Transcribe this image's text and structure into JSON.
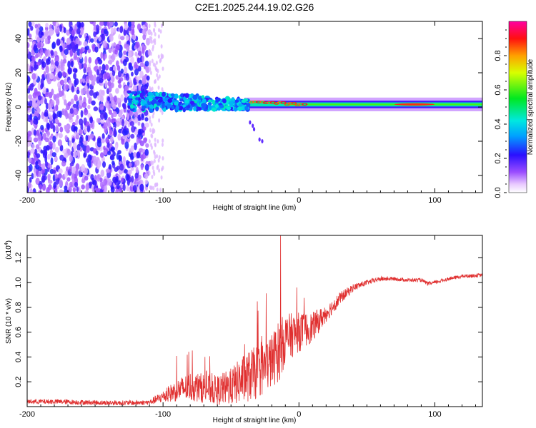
{
  "title": "C2E1.2025.244.19.02.G26",
  "chart_data": [
    {
      "type": "heatmap",
      "name": "spectrogram",
      "xlabel": "Height of straight line (km)",
      "ylabel": "Frequency (Hz)",
      "xlim": [
        -200,
        135
      ],
      "ylim": [
        -50,
        50
      ],
      "xticks": [
        -200,
        -100,
        0,
        100
      ],
      "yticks": [
        -40,
        -20,
        0,
        20,
        40
      ],
      "colorbar": {
        "label": "Normalized spectral amplitude",
        "range": [
          0,
          1
        ],
        "ticks": [
          0.0,
          0.2,
          0.4,
          0.6,
          0.8
        ],
        "tick_labels": [
          "0.0",
          "0.2",
          "0.4",
          "0.6",
          "0.8"
        ]
      },
      "regions": [
        {
          "name": "broadband-noise",
          "x": [
            -200,
            -110
          ],
          "freq": [
            -50,
            50
          ],
          "amplitude": 0.15
        },
        {
          "name": "noisy-carrier",
          "x": [
            -125,
            -40
          ],
          "freq": [
            -5,
            7
          ],
          "amplitude": 0.35
        },
        {
          "name": "carrier-tail",
          "x": [
            -40,
            135
          ],
          "freq_center": 1.5,
          "amplitude": 0.85
        }
      ]
    },
    {
      "type": "line",
      "name": "snr",
      "xlabel": "Height of straight line (km)",
      "ylabel": "SNR (10 * v/v)",
      "scale_label": "(x10",
      "scale_exp": "4",
      "scale_close": ")",
      "xlim": [
        -200,
        135
      ],
      "ylim": [
        0,
        1.38
      ],
      "xticks": [
        -200,
        -100,
        0,
        100
      ],
      "yticks": [
        0.2,
        0.4,
        0.6,
        0.8,
        1.0,
        1.2
      ],
      "ytick_labels": [
        "0.2",
        "0.4",
        "0.6",
        "0.8",
        "1.0",
        "1.2"
      ],
      "series": [
        {
          "name": "SNR",
          "color": "#e03030",
          "x": [
            -200,
            -180,
            -160,
            -140,
            -120,
            -110,
            -100,
            -90,
            -80,
            -70,
            -60,
            -50,
            -40,
            -30,
            -20,
            -14,
            -10,
            0,
            10,
            20,
            30,
            40,
            50,
            60,
            70,
            80,
            90,
            95,
            100,
            110,
            120,
            135
          ],
          "y": [
            0.04,
            0.04,
            0.035,
            0.03,
            0.03,
            0.035,
            0.08,
            0.13,
            0.16,
            0.15,
            0.13,
            0.16,
            0.23,
            0.28,
            0.37,
            0.46,
            0.55,
            0.6,
            0.64,
            0.75,
            0.87,
            0.96,
            1.0,
            1.03,
            1.03,
            1.02,
            1.02,
            0.99,
            1.0,
            1.03,
            1.05,
            1.06
          ],
          "noise": [
            0.02,
            0.02,
            0.02,
            0.02,
            0.02,
            0.02,
            0.05,
            0.09,
            0.12,
            0.12,
            0.12,
            0.15,
            0.2,
            0.22,
            0.22,
            0.25,
            0.2,
            0.16,
            0.12,
            0.07,
            0.05,
            0.03,
            0.02,
            0.02,
            0.015,
            0.015,
            0.015,
            0.015,
            0.015,
            0.015,
            0.015,
            0.015
          ],
          "spike": {
            "x": -13.5,
            "y": 1.38
          }
        }
      ]
    }
  ]
}
